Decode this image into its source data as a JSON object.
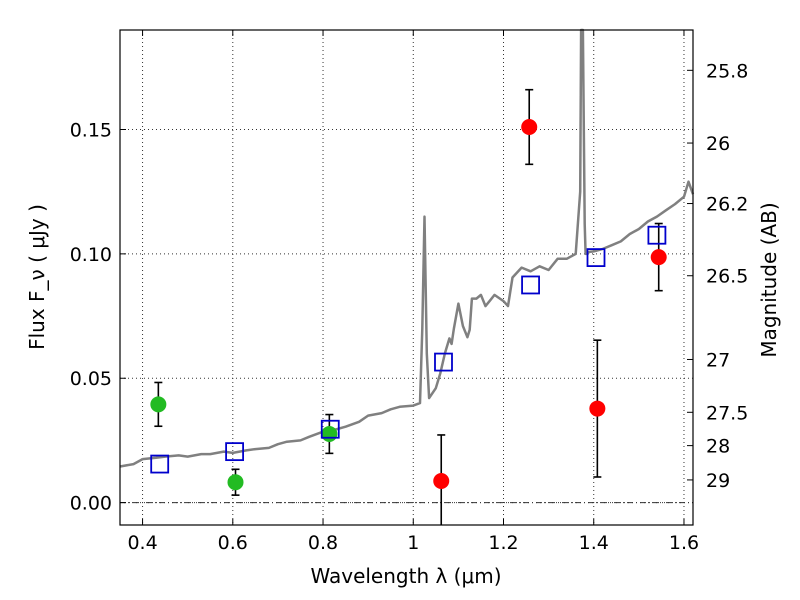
{
  "chart_data": {
    "type": "scatter",
    "xlabel": "Wavelength  λ (μm)",
    "ylabel": "Flux  F_ν ( μJy )",
    "y2label": "Magnitude (AB)",
    "xlim": [
      0.35,
      1.62
    ],
    "ylim": [
      -0.009,
      0.19
    ],
    "grid": true,
    "x_ticks": [
      {
        "value": 0.4,
        "label": "0.4"
      },
      {
        "value": 0.6,
        "label": "0.6"
      },
      {
        "value": 0.8,
        "label": "0.8"
      },
      {
        "value": 1.0,
        "label": "1"
      },
      {
        "value": 1.2,
        "label": "1.2"
      },
      {
        "value": 1.4,
        "label": "1.4"
      },
      {
        "value": 1.6,
        "label": "1.6"
      }
    ],
    "y_ticks": [
      {
        "value": 0.0,
        "label": "0.00"
      },
      {
        "value": 0.05,
        "label": "0.05"
      },
      {
        "value": 0.1,
        "label": "0.10"
      },
      {
        "value": 0.15,
        "label": "0.15"
      }
    ],
    "y2_ticks": [
      {
        "mag": 25.8,
        "label": "25.8"
      },
      {
        "mag": 26,
        "label": "26"
      },
      {
        "mag": 26.2,
        "label": "26.2"
      },
      {
        "mag": 26.5,
        "label": "26.5"
      },
      {
        "mag": 27,
        "label": "27"
      },
      {
        "mag": 27.5,
        "label": "27.5"
      },
      {
        "mag": 28,
        "label": "28"
      },
      {
        "mag": 29,
        "label": "29"
      }
    ],
    "series": [
      {
        "marker": "circle",
        "color": "#22bb22",
        "points": [
          {
            "x": 0.435,
            "y": 0.0395,
            "err": 0.0088
          },
          {
            "x": 0.606,
            "y": 0.0082,
            "err": 0.0052
          },
          {
            "x": 0.814,
            "y": 0.0276,
            "err": 0.0078
          }
        ]
      },
      {
        "marker": "circle",
        "color": "#ff0000",
        "points": [
          {
            "x": 1.062,
            "y": 0.0087,
            "err": 0.0185
          },
          {
            "x": 1.257,
            "y": 0.151,
            "err": 0.015
          },
          {
            "x": 1.408,
            "y": 0.0378,
            "err": 0.0275
          },
          {
            "x": 1.544,
            "y": 0.0987,
            "err": 0.0135
          }
        ]
      },
      {
        "marker": "open-square",
        "color": "#0000cc",
        "points": [
          {
            "x": 0.438,
            "y": 0.0155
          },
          {
            "x": 0.604,
            "y": 0.0205
          },
          {
            "x": 0.816,
            "y": 0.0295
          },
          {
            "x": 1.067,
            "y": 0.0565
          },
          {
            "x": 1.26,
            "y": 0.0875
          },
          {
            "x": 1.405,
            "y": 0.0985
          },
          {
            "x": 1.54,
            "y": 0.1075
          }
        ]
      },
      {
        "marker": "line",
        "color": "#808080",
        "x": [
          0.35,
          0.38,
          0.4,
          0.43,
          0.45,
          0.48,
          0.5,
          0.53,
          0.55,
          0.58,
          0.6,
          0.63,
          0.65,
          0.68,
          0.7,
          0.72,
          0.75,
          0.77,
          0.8,
          0.82,
          0.85,
          0.88,
          0.9,
          0.93,
          0.95,
          0.97,
          1.0,
          1.015,
          1.02,
          1.025,
          1.03,
          1.035,
          1.05,
          1.06,
          1.07,
          1.08,
          1.085,
          1.09,
          1.1,
          1.11,
          1.12,
          1.125,
          1.13,
          1.14,
          1.15,
          1.16,
          1.17,
          1.18,
          1.2,
          1.21,
          1.22,
          1.24,
          1.26,
          1.28,
          1.3,
          1.32,
          1.34,
          1.36,
          1.37,
          1.372,
          1.376,
          1.38,
          1.382,
          1.385,
          1.39,
          1.4,
          1.42,
          1.44,
          1.46,
          1.48,
          1.5,
          1.52,
          1.54,
          1.56,
          1.58,
          1.6,
          1.61,
          1.62
        ],
        "y": [
          0.0145,
          0.0155,
          0.0175,
          0.018,
          0.0185,
          0.019,
          0.0185,
          0.0195,
          0.0195,
          0.0205,
          0.02,
          0.021,
          0.0215,
          0.022,
          0.0235,
          0.0245,
          0.025,
          0.0265,
          0.0285,
          0.029,
          0.0305,
          0.0325,
          0.035,
          0.036,
          0.0375,
          0.0385,
          0.039,
          0.04,
          0.07,
          0.115,
          0.06,
          0.042,
          0.046,
          0.052,
          0.06,
          0.066,
          0.0638,
          0.07,
          0.08,
          0.071,
          0.0665,
          0.0695,
          0.082,
          0.082,
          0.0835,
          0.079,
          0.0812,
          0.0835,
          0.081,
          0.079,
          0.0905,
          0.0945,
          0.093,
          0.095,
          0.0935,
          0.098,
          0.098,
          0.1,
          0.125,
          0.19,
          0.19,
          0.112,
          0.1,
          0.1,
          0.1008,
          0.101,
          0.102,
          0.1035,
          0.105,
          0.108,
          0.11,
          0.113,
          0.115,
          0.1175,
          0.12,
          0.123,
          0.129,
          0.124
        ]
      }
    ]
  }
}
